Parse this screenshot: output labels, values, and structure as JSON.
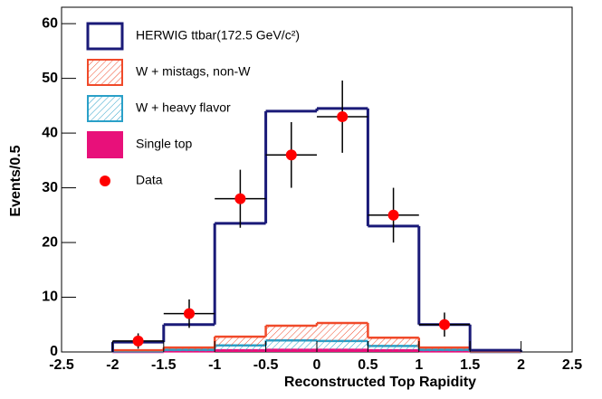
{
  "chart_data": {
    "type": "histogram",
    "xlabel": "Reconstructed Top Rapidity",
    "ylabel": "Events/0.5",
    "bins": [
      -2,
      -1.5,
      -1,
      -0.5,
      0,
      0.5,
      1,
      1.5,
      2
    ],
    "xlim": [
      -2.5,
      2.5
    ],
    "ylim": [
      0,
      63
    ],
    "xticks": [
      -2.5,
      -2,
      -1.5,
      -1,
      -0.5,
      0,
      0.5,
      1,
      1.5,
      2,
      2.5
    ],
    "yticks": [
      0,
      10,
      20,
      30,
      40,
      50,
      60
    ],
    "stacked": true,
    "series": [
      {
        "name": "Single top",
        "color": "#e8107a",
        "fill": "solid",
        "values": [
          0,
          0.1,
          0.3,
          0.4,
          0.4,
          0.3,
          0.1,
          0
        ]
      },
      {
        "name": "W + heavy flavor",
        "color": "#2aa0c8",
        "fill": "hatch",
        "values": [
          0.1,
          0.3,
          0.9,
          1.7,
          1.6,
          0.8,
          0.3,
          0
        ]
      },
      {
        "name": "W + mistags, non-W",
        "color": "#f04a2a",
        "fill": "hatch",
        "values": [
          0.2,
          0.4,
          1.6,
          2.7,
          3.3,
          1.5,
          0.4,
          0.1
        ]
      },
      {
        "name": "HERWIG ttbar(172.5 GeV/c²)",
        "color": "#1a1a78",
        "fill": "none",
        "values": [
          1.5,
          4.2,
          20.7,
          39.2,
          39.2,
          20.4,
          4.2,
          0.2
        ]
      }
    ],
    "data": {
      "name": "Data",
      "color": "#ff0000",
      "x": [
        -1.75,
        -1.25,
        -0.75,
        -0.25,
        0.25,
        0.75,
        1.25
      ],
      "values": [
        2,
        7,
        28,
        36,
        43,
        25,
        5
      ],
      "errors": [
        1.4,
        2.6,
        5.3,
        6,
        6.6,
        5,
        2.2
      ]
    }
  }
}
